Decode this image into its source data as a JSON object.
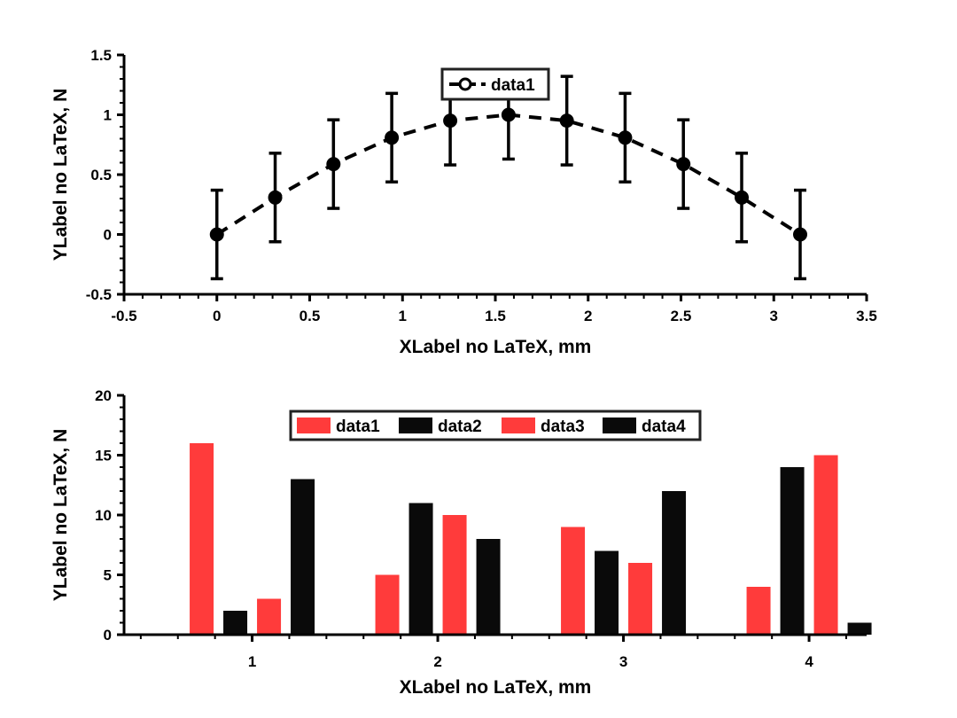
{
  "chart_data": [
    {
      "type": "line",
      "title": "",
      "xlabel": "XLabel no LaTeX, mm",
      "ylabel": "YLabel no LaTeX, N",
      "xlim": [
        -0.5,
        3.5
      ],
      "ylim": [
        -0.5,
        1.5
      ],
      "xticks": [
        "-0.5",
        "0",
        "0.5",
        "1",
        "1.5",
        "2",
        "2.5",
        "3",
        "3.5"
      ],
      "yticks": [
        "-0.5",
        "0",
        "0.5",
        "1",
        "1.5"
      ],
      "grid": false,
      "legend_position": "top-center",
      "series": [
        {
          "name": "data1",
          "line_style": "dashed",
          "marker": "circle",
          "color": "#000000",
          "x": [
            0,
            0.314,
            0.628,
            0.942,
            1.257,
            1.571,
            1.885,
            2.199,
            2.513,
            2.827,
            3.142
          ],
          "y": [
            0,
            0.309,
            0.588,
            0.809,
            0.951,
            1.0,
            0.951,
            0.809,
            0.588,
            0.309,
            0
          ],
          "error": [
            0.37,
            0.37,
            0.37,
            0.37,
            0.37,
            0.37,
            0.37,
            0.37,
            0.37,
            0.37,
            0.37
          ]
        }
      ]
    },
    {
      "type": "bar",
      "title": "",
      "xlabel": "XLabel no LaTeX, mm",
      "ylabel": "YLabel no LaTeX, N",
      "categories": [
        "1",
        "2",
        "3",
        "4"
      ],
      "ylim": [
        0,
        20
      ],
      "yticks": [
        "0",
        "5",
        "10",
        "15",
        "20"
      ],
      "grid": false,
      "legend_position": "top-center",
      "legend_orientation": "horizontal",
      "series": [
        {
          "name": "data1",
          "color": "#ff3b3b",
          "values": [
            16,
            5,
            9,
            4
          ]
        },
        {
          "name": "data2",
          "color": "#0a0a0a",
          "values": [
            2,
            11,
            7,
            14
          ]
        },
        {
          "name": "data3",
          "color": "#ff3b3b",
          "values": [
            3,
            10,
            6,
            15
          ]
        },
        {
          "name": "data4",
          "color": "#0a0a0a",
          "values": [
            13,
            8,
            12,
            1
          ]
        }
      ]
    }
  ]
}
